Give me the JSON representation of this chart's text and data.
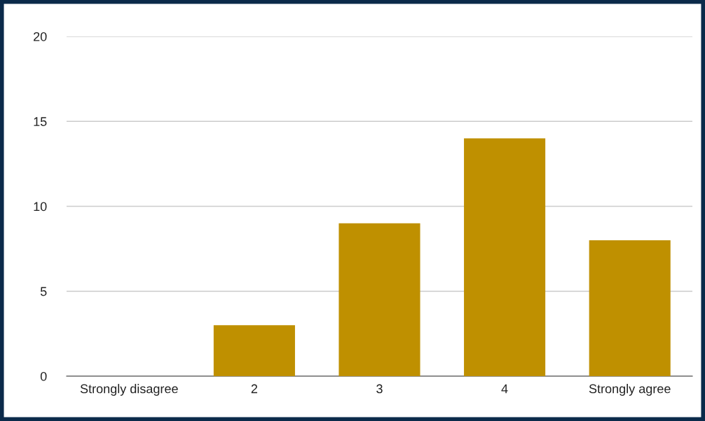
{
  "chart_data": {
    "type": "bar",
    "categories": [
      "Strongly disagree",
      "2",
      "3",
      "4",
      "Strongly agree"
    ],
    "values": [
      0,
      3,
      9,
      14,
      8
    ],
    "color": "#bf9000",
    "ylim": [
      0,
      20
    ],
    "yticks": [
      0,
      5,
      10,
      15,
      20
    ],
    "grid": "y"
  }
}
